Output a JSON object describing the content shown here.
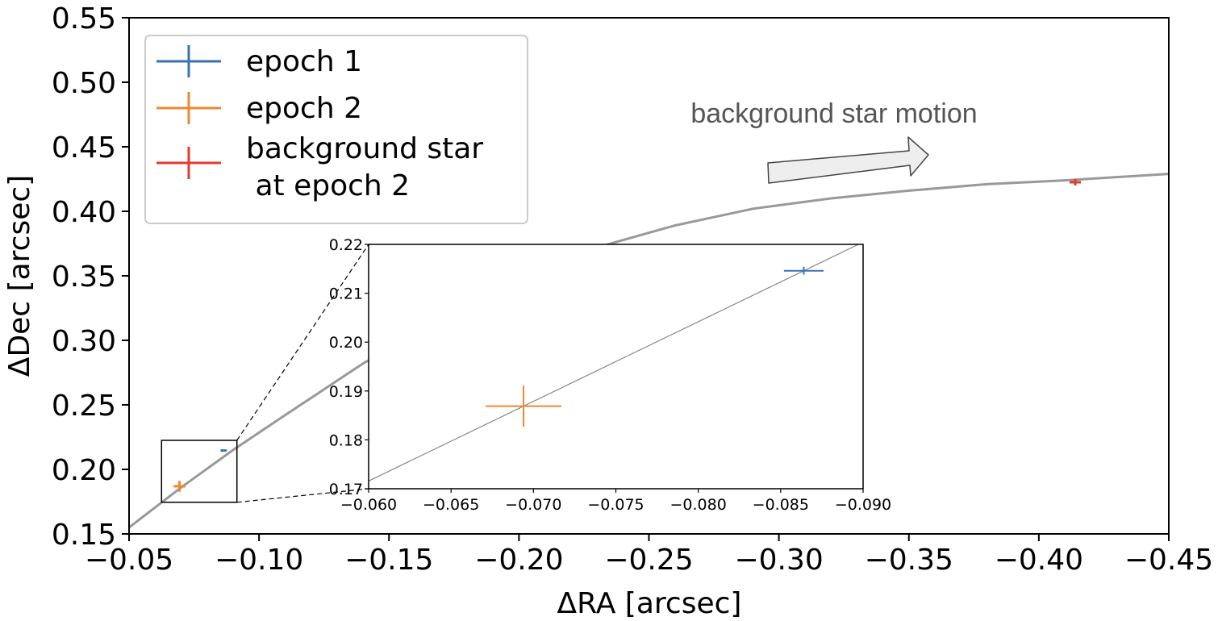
{
  "chart_data": {
    "type": "scatter",
    "xlabel": "ΔRA [arcsec]",
    "ylabel": "ΔDec [arcsec]",
    "xlim": [
      -0.05,
      -0.45
    ],
    "ylim": [
      0.15,
      0.55
    ],
    "xticks": [
      "−0.05",
      "−0.10",
      "−0.15",
      "−0.20",
      "−0.25",
      "−0.30",
      "−0.35",
      "−0.40",
      "−0.45"
    ],
    "yticks": [
      "0.15",
      "0.20",
      "0.25",
      "0.30",
      "0.35",
      "0.40",
      "0.45",
      "0.50",
      "0.55"
    ],
    "grid": false,
    "legend_position": "top-left",
    "series": [
      {
        "name": "epoch 1",
        "color": "#3a72b0",
        "points": [
          {
            "x": -0.0864,
            "y": 0.2146,
            "xerr": 0.0012,
            "yerr": 0.0008
          }
        ]
      },
      {
        "name": "epoch 2",
        "color": "#ee8732",
        "points": [
          {
            "x": -0.0694,
            "y": 0.1869,
            "xerr": 0.0023,
            "yerr": 0.0042
          }
        ]
      },
      {
        "name": "background star\n at epoch 2",
        "color": "#e23a2f",
        "points": [
          {
            "x": -0.414,
            "y": 0.4225,
            "xerr": 0.0022,
            "yerr": 0.0025
          }
        ]
      }
    ],
    "track": {
      "color": "#999999",
      "x": [
        -0.05,
        -0.07,
        -0.09,
        -0.11,
        -0.125,
        -0.14,
        -0.17,
        -0.2,
        -0.23,
        -0.26,
        -0.29,
        -0.32,
        -0.35,
        -0.38,
        -0.41,
        -0.45
      ],
      "y": [
        0.155,
        0.186,
        0.215,
        0.242,
        0.262,
        0.282,
        0.318,
        0.349,
        0.372,
        0.389,
        0.402,
        0.41,
        0.416,
        0.421,
        0.424,
        0.429
      ]
    },
    "annotation": {
      "text": "background star motion",
      "arrow_direction": "right"
    },
    "inset": {
      "xlim": [
        -0.06,
        -0.09
      ],
      "ylim": [
        0.17,
        0.22
      ],
      "xticks": [
        "−0.060",
        "−0.065",
        "−0.070",
        "−0.075",
        "−0.080",
        "−0.085",
        "−0.090"
      ],
      "yticks": [
        "0.17",
        "0.18",
        "0.19",
        "0.20",
        "0.21",
        "0.22"
      ],
      "zoom_region": {
        "xlim": [
          -0.0625,
          -0.0915
        ],
        "ylim": [
          0.1745,
          0.2225
        ]
      }
    }
  }
}
